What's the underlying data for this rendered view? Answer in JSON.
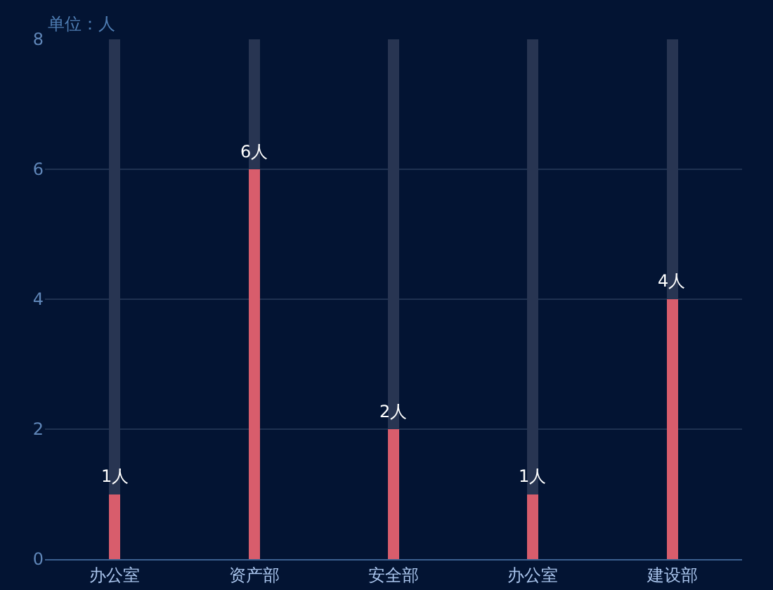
{
  "chart_data": {
    "type": "bar",
    "annotations": [
      "单位：人"
    ],
    "categories": [
      "办公室",
      "资产部",
      "安全部",
      "办公室",
      "建设部"
    ],
    "series": [
      {
        "color": "#d85d6c",
        "values": [
          1,
          6,
          2,
          1,
          4
        ],
        "value_labels": [
          "1人",
          "6人",
          "2人",
          "1人",
          "4人"
        ]
      },
      {
        "color": "#283552",
        "values": [
          7,
          2,
          6,
          7,
          4
        ]
      }
    ],
    "stacked": true,
    "ylim": [
      0,
      8
    ],
    "yticks": [
      0,
      2,
      4,
      6,
      8
    ],
    "grid": "y"
  }
}
